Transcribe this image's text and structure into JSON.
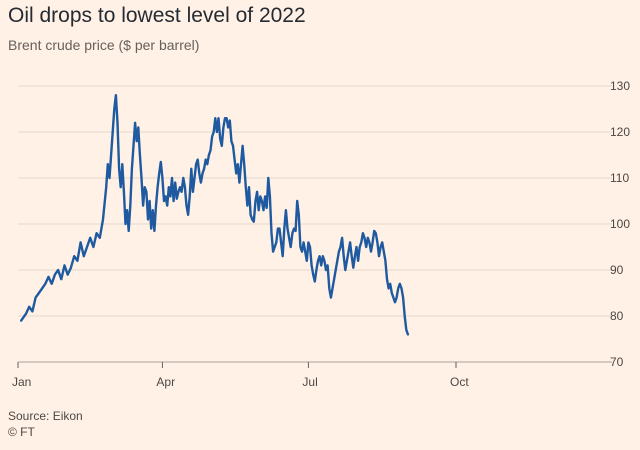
{
  "chart_data": {
    "type": "line",
    "title": "Oil drops to lowest level of 2022",
    "subtitle": "Brent crude price ($ per barrel)",
    "xlabel": "",
    "ylabel": "",
    "ylim": [
      70,
      130
    ],
    "yticks": [
      70,
      80,
      90,
      100,
      110,
      120,
      130
    ],
    "xticks": [
      {
        "label": "Jan",
        "day": 1
      },
      {
        "label": "Apr",
        "day": 91
      },
      {
        "label": "Jul",
        "day": 182
      },
      {
        "label": "Oct",
        "day": 274
      }
    ],
    "grid": true,
    "color": "#1f5aa0",
    "series": [
      {
        "name": "Brent crude",
        "points": [
          [
            3,
            79.0
          ],
          [
            6,
            80.5
          ],
          [
            8,
            82
          ],
          [
            10,
            81
          ],
          [
            12,
            84
          ],
          [
            14,
            85
          ],
          [
            16,
            86
          ],
          [
            18,
            87
          ],
          [
            20,
            88.5
          ],
          [
            22,
            87
          ],
          [
            24,
            89
          ],
          [
            26,
            90
          ],
          [
            28,
            88
          ],
          [
            30,
            91
          ],
          [
            32,
            89
          ],
          [
            34,
            90.5
          ],
          [
            36,
            93
          ],
          [
            38,
            92
          ],
          [
            40,
            96
          ],
          [
            42,
            93
          ],
          [
            44,
            95
          ],
          [
            46,
            97
          ],
          [
            48,
            95
          ],
          [
            50,
            98
          ],
          [
            52,
            97
          ],
          [
            54,
            101
          ],
          [
            56,
            108
          ],
          [
            57,
            113
          ],
          [
            58,
            110
          ],
          [
            60,
            120
          ],
          [
            61,
            125
          ],
          [
            62,
            128
          ],
          [
            63,
            122
          ],
          [
            64,
            112
          ],
          [
            65,
            108
          ],
          [
            66,
            113
          ],
          [
            67,
            107
          ],
          [
            68,
            100
          ],
          [
            69,
            103
          ],
          [
            70,
            98.5
          ],
          [
            71,
            104
          ],
          [
            72,
            112
          ],
          [
            73,
            117
          ],
          [
            74,
            122
          ],
          [
            75,
            118
          ],
          [
            76,
            121
          ],
          [
            77,
            115
          ],
          [
            78,
            110
          ],
          [
            79,
            104
          ],
          [
            80,
            108
          ],
          [
            81,
            107
          ],
          [
            82,
            101
          ],
          [
            83,
            105
          ],
          [
            84,
            99
          ],
          [
            85,
            103
          ],
          [
            86,
            98.5
          ],
          [
            87,
            104
          ],
          [
            88,
            108
          ],
          [
            89,
            111
          ],
          [
            90,
            113.5
          ],
          [
            91,
            110
          ],
          [
            92,
            105
          ],
          [
            93,
            106
          ],
          [
            94,
            104
          ],
          [
            95,
            108
          ],
          [
            96,
            106
          ],
          [
            97,
            110
          ],
          [
            98,
            105
          ],
          [
            99,
            109
          ],
          [
            100,
            105.5
          ],
          [
            101,
            107
          ],
          [
            102,
            108
          ],
          [
            103,
            107
          ],
          [
            104,
            110
          ],
          [
            105,
            108
          ],
          [
            106,
            104
          ],
          [
            107,
            102
          ],
          [
            108,
            106
          ],
          [
            109,
            112
          ],
          [
            110,
            107
          ],
          [
            111,
            110
          ],
          [
            112,
            113
          ],
          [
            113,
            114
          ],
          [
            114,
            111
          ],
          [
            115,
            109
          ],
          [
            116,
            111
          ],
          [
            117,
            112
          ],
          [
            118,
            114
          ],
          [
            119,
            113
          ],
          [
            120,
            115
          ],
          [
            121,
            116
          ],
          [
            122,
            119
          ],
          [
            123,
            120
          ],
          [
            124,
            123
          ],
          [
            125,
            120
          ],
          [
            126,
            123
          ],
          [
            127,
            118.5
          ],
          [
            128,
            117
          ],
          [
            129,
            121
          ],
          [
            130,
            123
          ],
          [
            131,
            123
          ],
          [
            132,
            121
          ],
          [
            133,
            122.5
          ],
          [
            134,
            118
          ],
          [
            135,
            117
          ],
          [
            136,
            114
          ],
          [
            137,
            111
          ],
          [
            138,
            113
          ],
          [
            139,
            109
          ],
          [
            140,
            113
          ],
          [
            141,
            117
          ],
          [
            142,
            113
          ],
          [
            143,
            108
          ],
          [
            144,
            104
          ],
          [
            145,
            108
          ],
          [
            146,
            102
          ],
          [
            147,
            101
          ],
          [
            148,
            100.5
          ],
          [
            149,
            105
          ],
          [
            150,
            107
          ],
          [
            151,
            103
          ],
          [
            152,
            106
          ],
          [
            153,
            105
          ],
          [
            154,
            103
          ],
          [
            155,
            106
          ],
          [
            156,
            103.5
          ],
          [
            157,
            110
          ],
          [
            158,
            106
          ],
          [
            159,
            98
          ],
          [
            160,
            94
          ],
          [
            161,
            95
          ],
          [
            162,
            96
          ],
          [
            163,
            99
          ],
          [
            164,
            99
          ],
          [
            165,
            96
          ],
          [
            166,
            93
          ],
          [
            167,
            99
          ],
          [
            168,
            103
          ],
          [
            169,
            99
          ],
          [
            170,
            97
          ],
          [
            171,
            95
          ],
          [
            172,
            98
          ],
          [
            173,
            99
          ],
          [
            174,
            98.5
          ],
          [
            175,
            105
          ],
          [
            176,
            102
          ],
          [
            177,
            95
          ],
          [
            178,
            94
          ],
          [
            179,
            96
          ],
          [
            180,
            94
          ],
          [
            181,
            92
          ],
          [
            182,
            96
          ],
          [
            183,
            95
          ],
          [
            184,
            91
          ],
          [
            185,
            89
          ],
          [
            186,
            87.5
          ],
          [
            187,
            90
          ],
          [
            188,
            92
          ],
          [
            189,
            93
          ],
          [
            190,
            91
          ],
          [
            191,
            93
          ],
          [
            192,
            92
          ],
          [
            193,
            90
          ],
          [
            194,
            91
          ],
          [
            195,
            86
          ],
          [
            196,
            84
          ],
          [
            197,
            86
          ],
          [
            198,
            88
          ],
          [
            199,
            90
          ],
          [
            200,
            92
          ],
          [
            201,
            94
          ],
          [
            202,
            95
          ],
          [
            203,
            97
          ],
          [
            204,
            93
          ],
          [
            205,
            90
          ],
          [
            206,
            92
          ],
          [
            207,
            94
          ],
          [
            208,
            96
          ],
          [
            209,
            93
          ],
          [
            210,
            90.5
          ],
          [
            211,
            93
          ],
          [
            212,
            95
          ],
          [
            213,
            92
          ],
          [
            214,
            95
          ],
          [
            215,
            96
          ],
          [
            216,
            98
          ],
          [
            217,
            97
          ],
          [
            218,
            95
          ],
          [
            219,
            97
          ],
          [
            220,
            96
          ],
          [
            221,
            94
          ],
          [
            222,
            96
          ],
          [
            223,
            98.5
          ],
          [
            224,
            98
          ],
          [
            225,
            96
          ],
          [
            226,
            93
          ],
          [
            227,
            95
          ],
          [
            228,
            96
          ],
          [
            229,
            94
          ],
          [
            230,
            92
          ],
          [
            231,
            88
          ],
          [
            232,
            86
          ],
          [
            233,
            87
          ],
          [
            234,
            85
          ],
          [
            235,
            84
          ],
          [
            236,
            83
          ],
          [
            237,
            84
          ],
          [
            238,
            86
          ],
          [
            239,
            87
          ],
          [
            240,
            86
          ],
          [
            241,
            84
          ],
          [
            242,
            80
          ],
          [
            243,
            77
          ],
          [
            244,
            76
          ]
        ]
      }
    ],
    "source": "Source: Eikon",
    "credit": "© FT"
  }
}
